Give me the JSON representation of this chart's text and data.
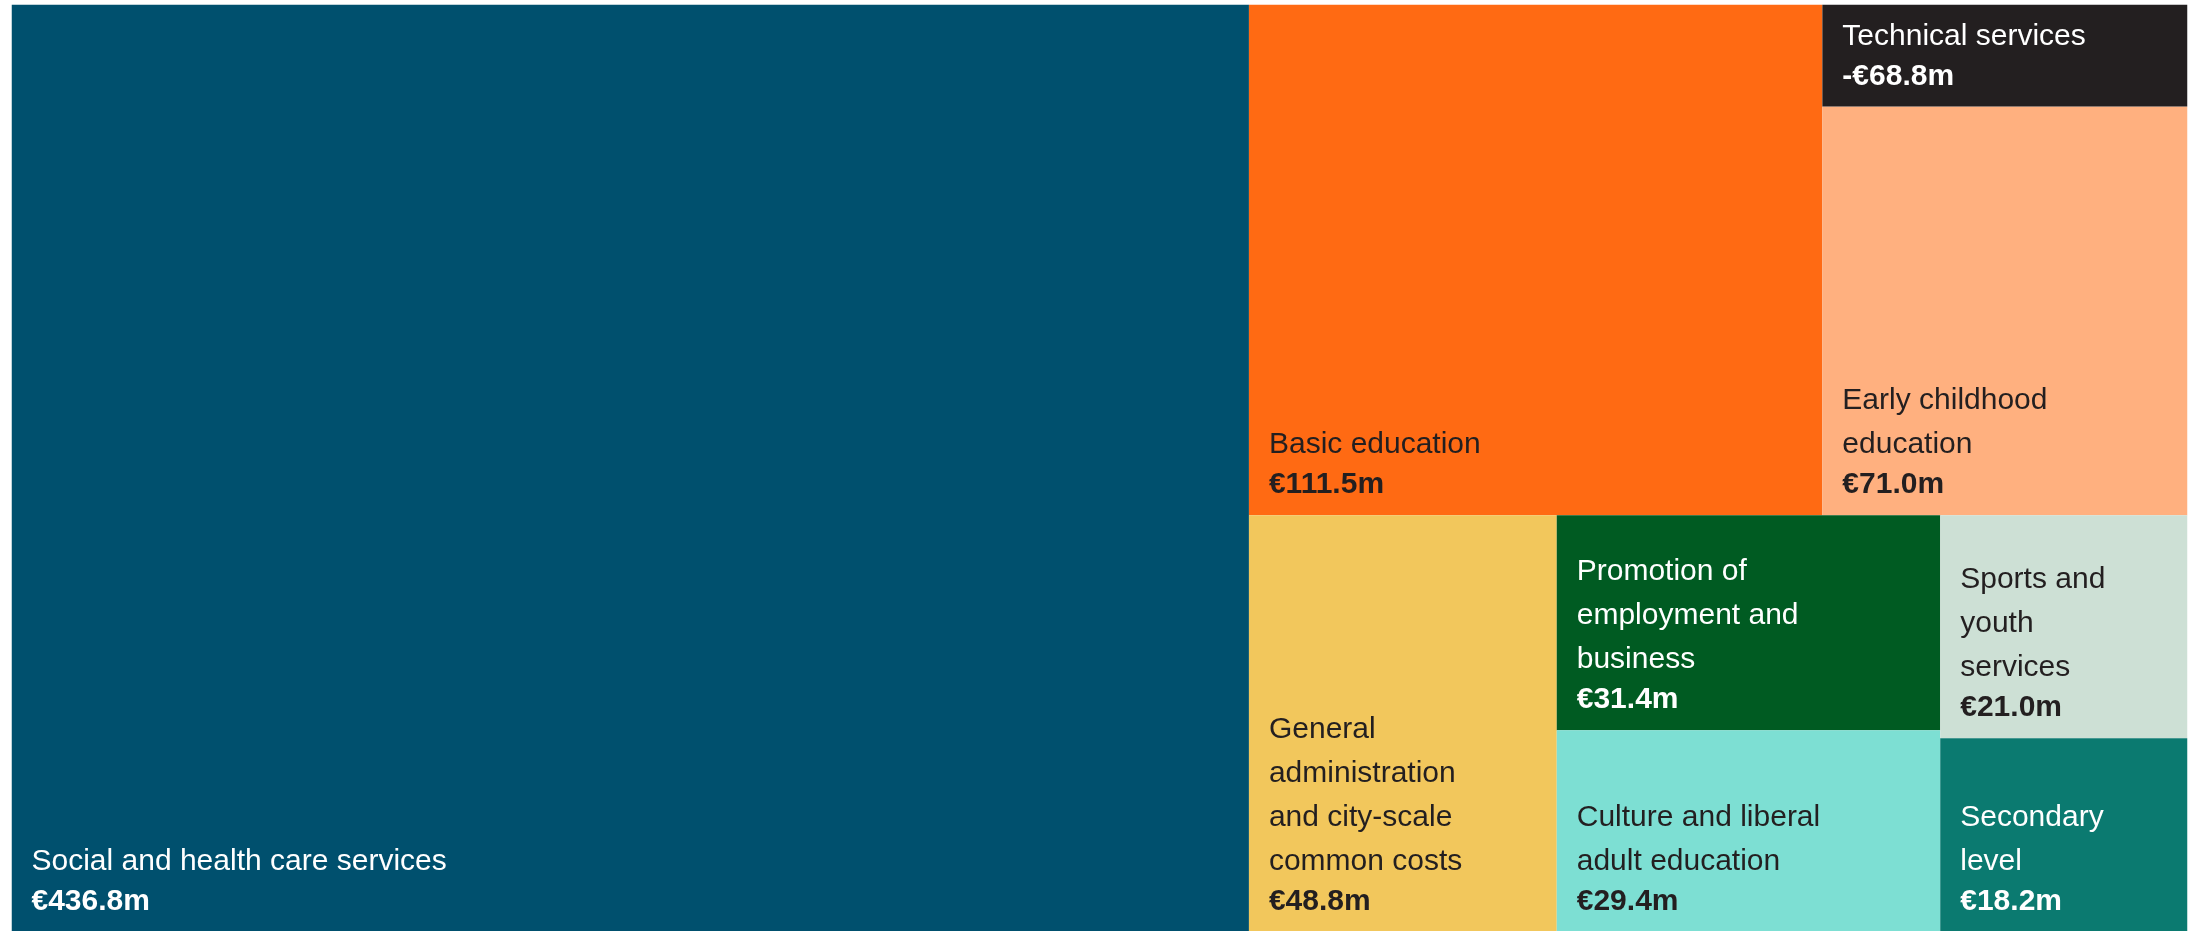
{
  "chart_data": {
    "type": "other",
    "categories": [
      "Social and health care services",
      "Basic education",
      "Technical services",
      "Early childhood education",
      "General administration and city-scale common costs",
      "Promotion of employment and business",
      "Culture and liberal adult education",
      "Sports and youth services",
      "Secondary level"
    ],
    "values": [
      436.8,
      111.5,
      -68.8,
      71.0,
      48.8,
      31.4,
      29.4,
      21.0,
      18.2
    ],
    "value_labels": [
      "€436.8m",
      "€111.5m",
      "-€68.8m",
      "€71.0m",
      "€48.8m",
      "€31.4m",
      "€29.4m",
      "€21.0m",
      "€18.2m"
    ],
    "colors": [
      "#00506e",
      "#ff6a13",
      "#231f20",
      "#ffb07f",
      "#f2c75c",
      "#005b22",
      "#7ddfd3",
      "#cde0d5",
      "#0b7a70"
    ]
  }
}
